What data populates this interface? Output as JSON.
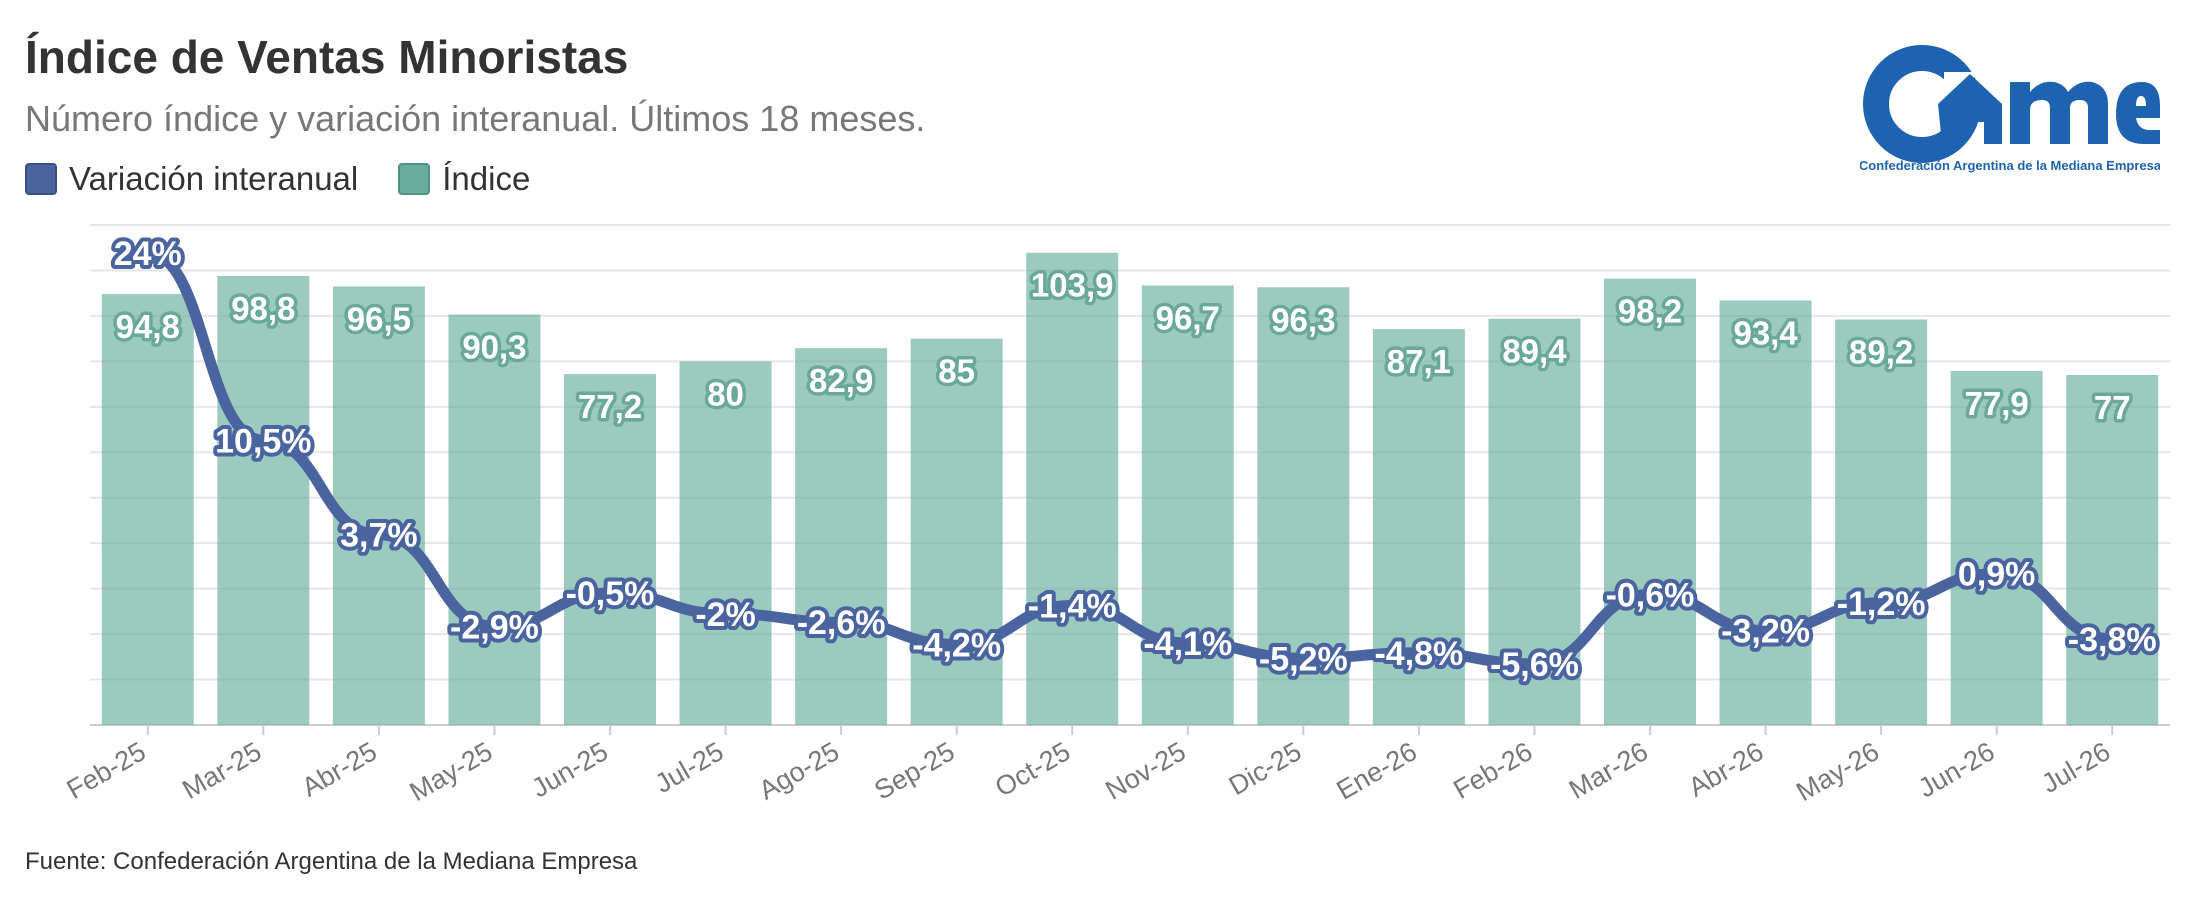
{
  "title": "Índice de Ventas Minoristas",
  "subtitle": "Número índice y variación interanual. Últimos 18 meses.",
  "legend": [
    {
      "label": "Variación interanual",
      "color": "#4a64a0"
    },
    {
      "label": "Índice",
      "color": "#69ae9c"
    }
  ],
  "logo": {
    "text": "came",
    "caption": "Confederación Argentina de la Mediana Empresa",
    "color": "#1e63b0"
  },
  "source": "Fuente: Confederación Argentina de la Mediana Empresa",
  "chart_data": {
    "type": "bar",
    "categories": [
      "Feb-25",
      "Mar-25",
      "Abr-25",
      "May-25",
      "Jun-25",
      "Jul-25",
      "Ago-25",
      "Sep-25",
      "Oct-25",
      "Nov-25",
      "Dic-25",
      "Ene-26",
      "Feb-26",
      "Mar-26",
      "Abr-26",
      "May-26",
      "Jun-26",
      "Jul-26"
    ],
    "series": [
      {
        "name": "Índice",
        "type": "bar",
        "color": "#69ae9c",
        "values": [
          94.8,
          98.8,
          96.5,
          90.3,
          77.2,
          80,
          82.9,
          85,
          103.9,
          96.7,
          96.3,
          87.1,
          89.4,
          98.2,
          93.4,
          89.2,
          77.9,
          77
        ],
        "labels": [
          "94,8",
          "98,8",
          "96,5",
          "90,3",
          "77,2",
          "80",
          "82,9",
          "85",
          "103,9",
          "96,7",
          "96,3",
          "87,1",
          "89,4",
          "98,2",
          "93,4",
          "89,2",
          "77,9",
          "77"
        ]
      },
      {
        "name": "Variación interanual",
        "type": "line",
        "color": "#4a64a0",
        "values": [
          24,
          10.5,
          3.7,
          -2.9,
          -0.5,
          -2,
          -2.6,
          -4.2,
          -1.4,
          -4.1,
          -5.2,
          -4.8,
          -5.6,
          -0.6,
          -3.2,
          -1.2,
          0.9,
          -3.8
        ],
        "labels": [
          "24%",
          "10,5%",
          "3,7%",
          "-2,9%",
          "-0,5%",
          "-2%",
          "-2,6%",
          "-4,2%",
          "-1,4%",
          "-4,1%",
          "-5,2%",
          "-4,8%",
          "-5,6%",
          "-0,6%",
          "-3,2%",
          "-1,2%",
          "0,9%",
          "-3,8%"
        ]
      }
    ],
    "bar_ylim": [
      0,
      110
    ],
    "line_ylim": [
      -10,
      26
    ],
    "grid": true,
    "legend_position": "top-left"
  }
}
